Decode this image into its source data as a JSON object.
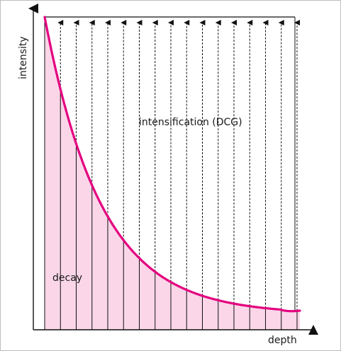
{
  "labels": {
    "y_axis": "intensity",
    "x_axis": "depth",
    "intensification": "intensification (DCG)",
    "decay": "decay"
  },
  "colors": {
    "curve": "#e4007f",
    "fill": "#fad6e8",
    "lines": "#111111"
  },
  "diagram": {
    "vertical_line_count": 17,
    "curve": "exponential decay of intensity with depth"
  }
}
